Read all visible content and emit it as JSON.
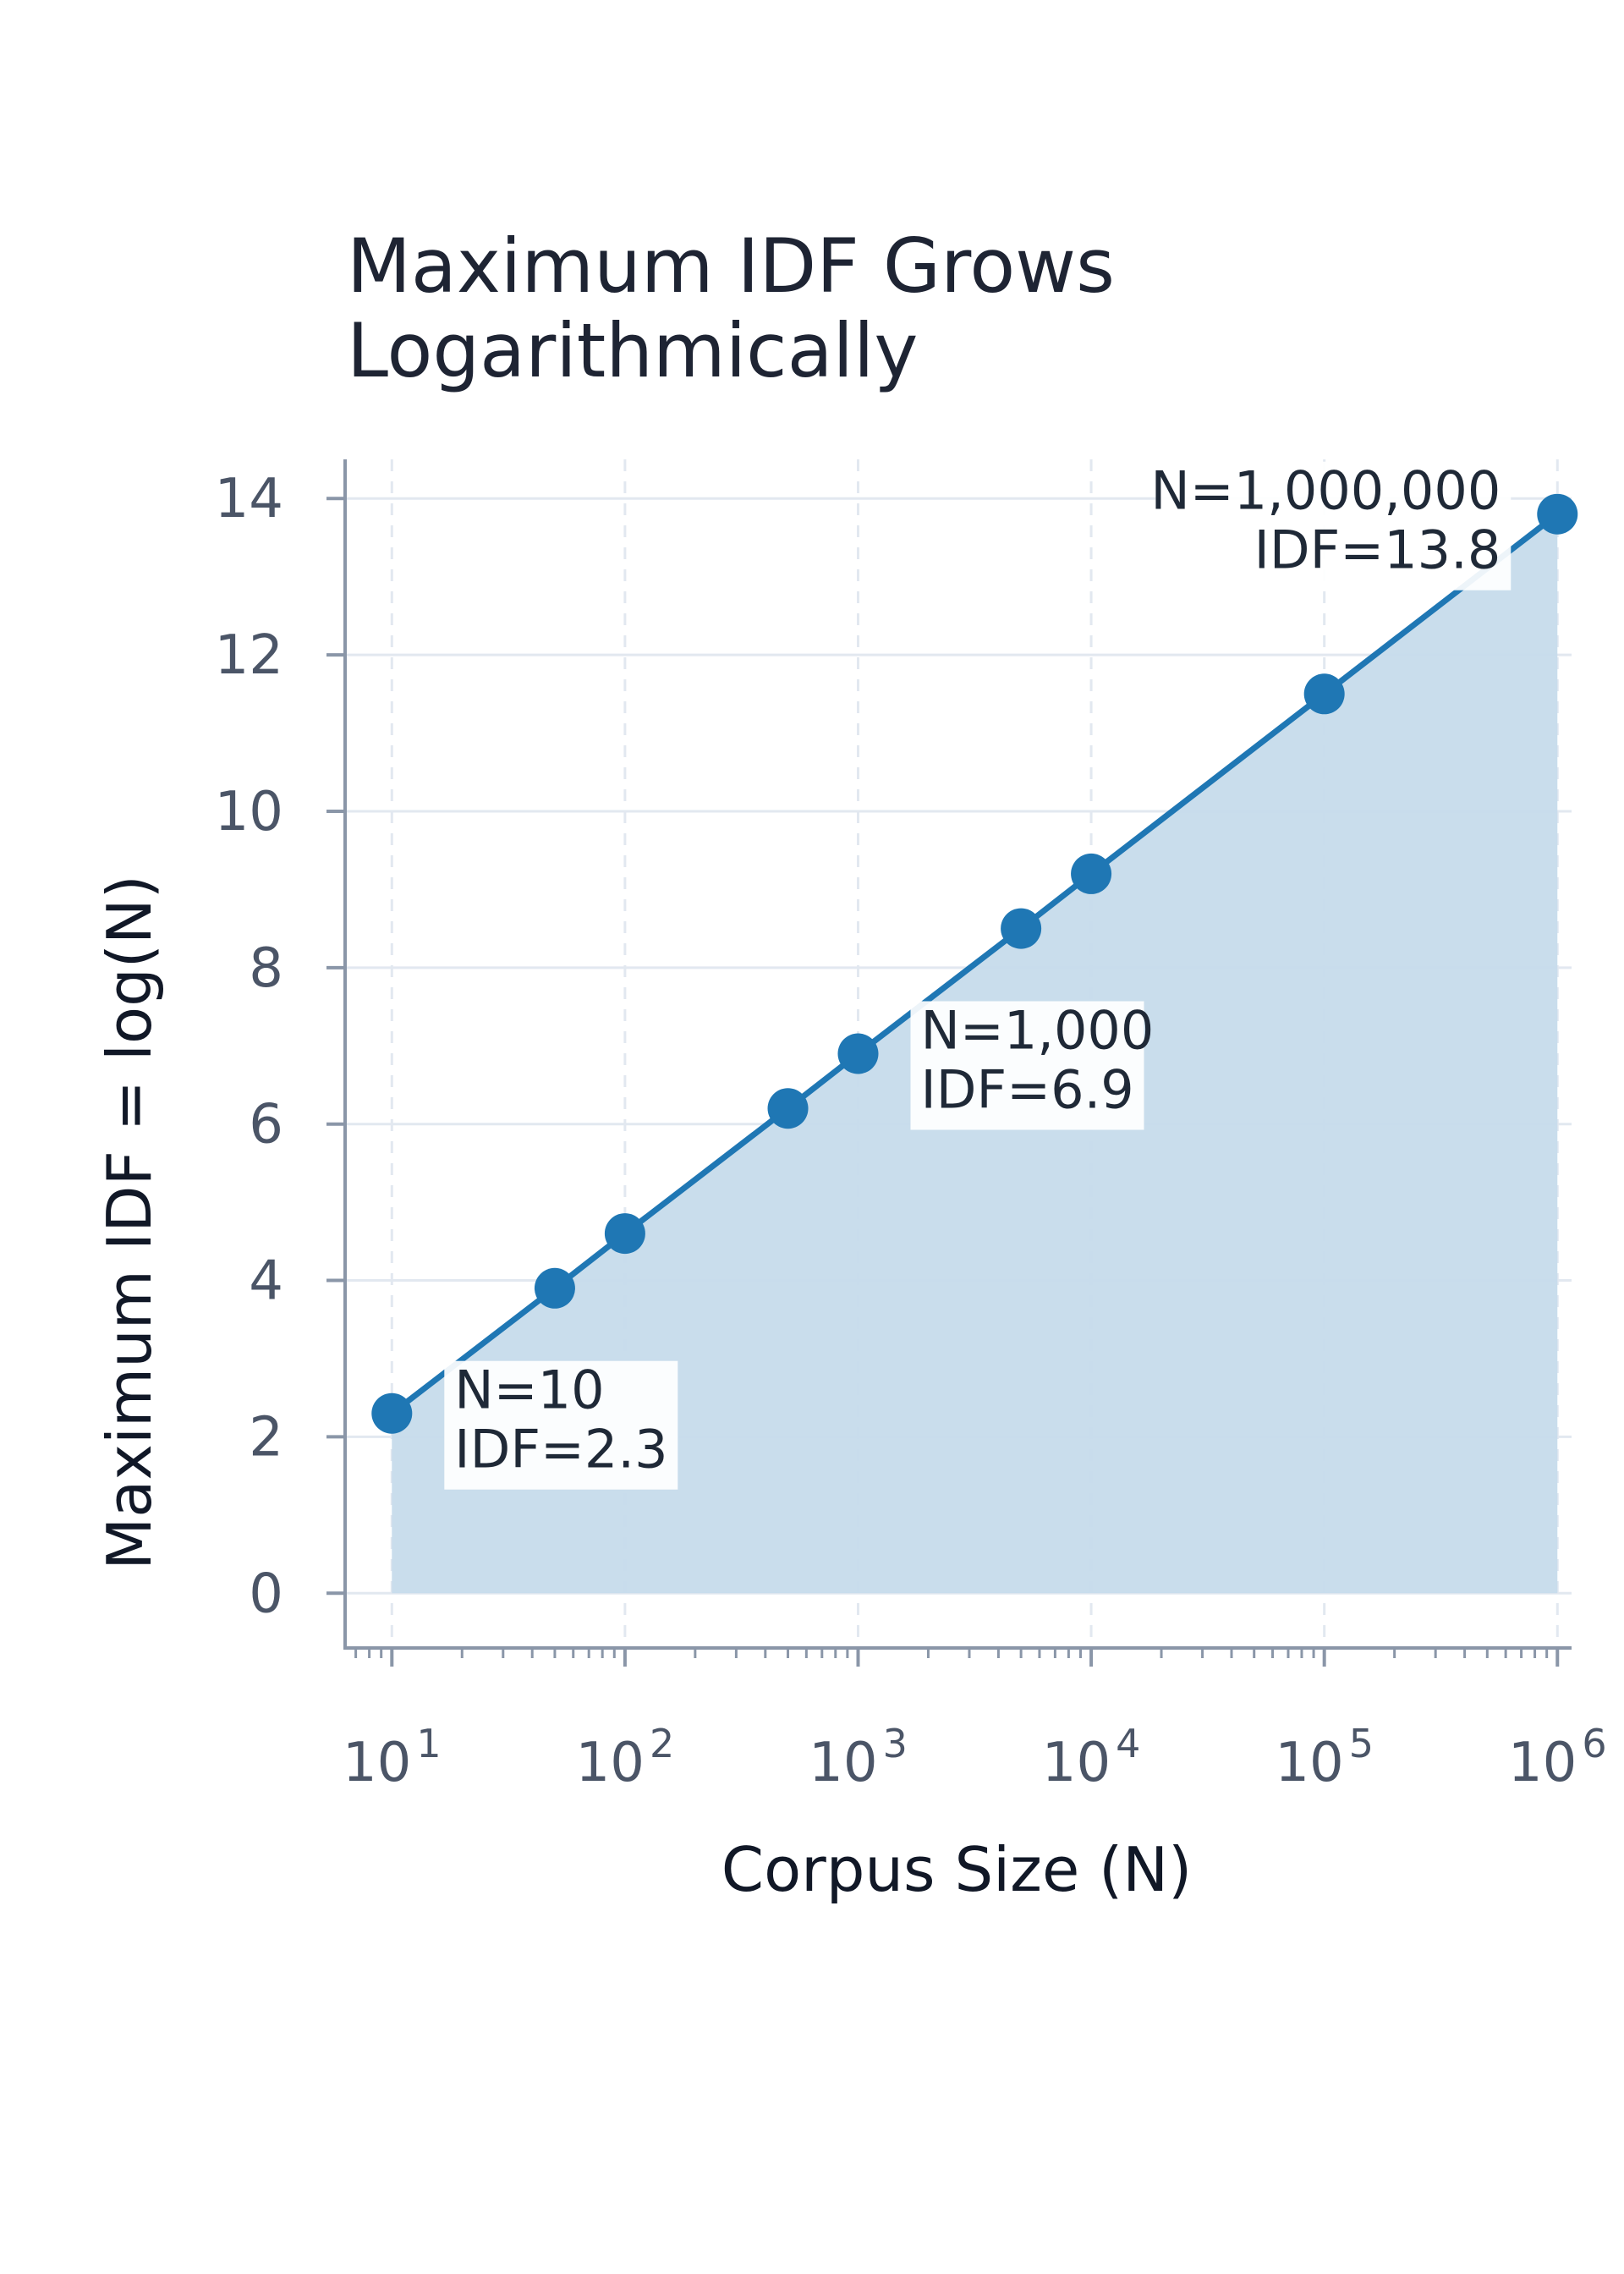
{
  "chart_data": {
    "type": "line",
    "title_lines": [
      "Maximum IDF Grows",
      "Logarithmically"
    ],
    "xlabel": "Corpus Size (N)",
    "ylabel": "Maximum IDF = log(N)",
    "x_scale": "log",
    "xlim": [
      6.3,
      1150000
    ],
    "ylim": [
      -0.7,
      14.5
    ],
    "x_ticks": [
      {
        "value": 10,
        "base": "10",
        "exp": "1"
      },
      {
        "value": 100,
        "base": "10",
        "exp": "2"
      },
      {
        "value": 1000,
        "base": "10",
        "exp": "3"
      },
      {
        "value": 10000,
        "base": "10",
        "exp": "4"
      },
      {
        "value": 100000,
        "base": "10",
        "exp": "5"
      },
      {
        "value": 1000000,
        "base": "10",
        "exp": "6"
      }
    ],
    "y_ticks": [
      {
        "value": 0,
        "label": "0"
      },
      {
        "value": 2,
        "label": "2"
      },
      {
        "value": 4,
        "label": "4"
      },
      {
        "value": 6,
        "label": "6"
      },
      {
        "value": 8,
        "label": "8"
      },
      {
        "value": 10,
        "label": "10"
      },
      {
        "value": 12,
        "label": "12"
      },
      {
        "value": 14,
        "label": "14"
      }
    ],
    "grid": true,
    "area_fill": true,
    "series": [
      {
        "x": [
          10,
          50,
          100,
          500,
          1000,
          5000,
          10000,
          100000,
          1000000
        ],
        "y": [
          2.3,
          3.9,
          4.6,
          6.2,
          6.9,
          8.5,
          9.2,
          11.5,
          13.8
        ]
      }
    ],
    "annotations": [
      {
        "x": 10,
        "y": 2.3,
        "lines": [
          "N=10",
          "IDF=2.3"
        ],
        "align": "left"
      },
      {
        "x": 1000,
        "y": 6.9,
        "lines": [
          "N=1,000",
          "IDF=6.9"
        ],
        "align": "left"
      },
      {
        "x": 1000000,
        "y": 13.8,
        "lines": [
          "N=1,000,000",
          "IDF=13.8"
        ],
        "align": "right"
      }
    ],
    "colors": {
      "line": "#1f77b4",
      "fill": "#c6dbeb",
      "grid": "#e2e8f0",
      "axis": "#8a96a8"
    }
  }
}
